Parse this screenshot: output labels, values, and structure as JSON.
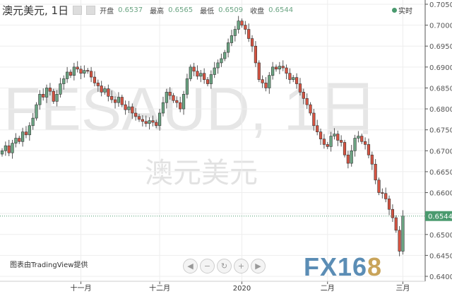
{
  "header": {
    "title": "澳元美元, 1日",
    "open_label": "开盘",
    "open": "0.6537",
    "high_label": "最高",
    "high": "0.6565",
    "low_label": "最低",
    "low": "0.6509",
    "close_label": "收盘",
    "close": "0.6544",
    "live": "实时"
  },
  "watermark": {
    "symbol": "FESAUD, 1日",
    "name": "澳元美元"
  },
  "credit": "图表由TradingView提供",
  "logo": {
    "main": "FX16",
    "accent": "8"
  },
  "nav_icons": [
    "arrow-left-icon",
    "zoom-out-icon",
    "reset-icon",
    "zoom-in-icon",
    "arrow-right-icon"
  ],
  "colors": {
    "up": "#6ba583",
    "down": "#d75442",
    "last_price": "#4a9a6e"
  },
  "chart_data": {
    "type": "candlestick",
    "ylim": [
      0.64,
      0.705
    ],
    "yticks": [
      "0.7050",
      "0.7000",
      "0.6950",
      "0.6900",
      "0.6850",
      "0.6800",
      "0.6750",
      "0.6700",
      "0.6650",
      "0.6600",
      "0.6550",
      "0.6500",
      "0.6450",
      "0.6400"
    ],
    "xticks": [
      {
        "label": "十一月",
        "index": 23
      },
      {
        "label": "十二月",
        "index": 46
      },
      {
        "label": "2020",
        "index": 70
      },
      {
        "label": "二月",
        "index": 95
      },
      {
        "label": "三月",
        "index": 117
      }
    ],
    "last_price": "0.6544",
    "grid": true,
    "closes": [
      0.67,
      0.6712,
      0.6695,
      0.6718,
      0.673,
      0.6722,
      0.6745,
      0.6738,
      0.676,
      0.6778,
      0.681,
      0.6835,
      0.6828,
      0.685,
      0.6842,
      0.6818,
      0.6835,
      0.686,
      0.6872,
      0.6888,
      0.688,
      0.69,
      0.6895,
      0.6885,
      0.6892,
      0.689,
      0.6876,
      0.6862,
      0.6855,
      0.684,
      0.6848,
      0.683,
      0.6822,
      0.6815,
      0.6828,
      0.681,
      0.6798,
      0.6805,
      0.679,
      0.6782,
      0.6775,
      0.677,
      0.6765,
      0.6772,
      0.6768,
      0.676,
      0.679,
      0.6815,
      0.684,
      0.6832,
      0.682,
      0.6815,
      0.68,
      0.6835,
      0.6872,
      0.69,
      0.689,
      0.6878,
      0.6885,
      0.687,
      0.686,
      0.6882,
      0.6898,
      0.691,
      0.692,
      0.6935,
      0.6958,
      0.6975,
      0.699,
      0.701,
      0.7,
      0.699,
      0.6968,
      0.695,
      0.691,
      0.687,
      0.6862,
      0.685,
      0.688,
      0.69,
      0.6895,
      0.6902,
      0.6898,
      0.6885,
      0.687,
      0.6875,
      0.686,
      0.684,
      0.6825,
      0.681,
      0.679,
      0.676,
      0.6745,
      0.6728,
      0.6715,
      0.671,
      0.6735,
      0.674,
      0.6725,
      0.672,
      0.669,
      0.667,
      0.67,
      0.673,
      0.6735,
      0.6722,
      0.6715,
      0.669,
      0.6668,
      0.663,
      0.66,
      0.6598,
      0.6585,
      0.656,
      0.654,
      0.651,
      0.646,
      0.6544
    ]
  }
}
